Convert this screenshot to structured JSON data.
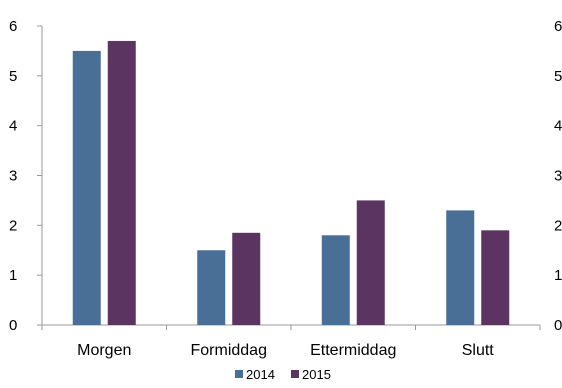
{
  "chart_data": {
    "type": "bar",
    "categories": [
      "Morgen",
      "Formiddag",
      "Ettermiddag",
      "Slutt"
    ],
    "series": [
      {
        "name": "2014",
        "values": [
          5.5,
          1.5,
          1.8,
          2.3
        ],
        "color": "#4a6f96"
      },
      {
        "name": "2015",
        "values": [
          5.7,
          1.85,
          2.5,
          1.9
        ],
        "color": "#5c3462"
      }
    ],
    "ylim": [
      0,
      6
    ],
    "yticks": [
      "0",
      "1",
      "2",
      "3",
      "4",
      "5",
      "6"
    ],
    "y2ticks": [
      "0",
      "1",
      "2",
      "3",
      "4",
      "5",
      "6"
    ],
    "legend": "bottom-center",
    "grid": false,
    "title": "",
    "xlabel": "",
    "ylabel": ""
  }
}
